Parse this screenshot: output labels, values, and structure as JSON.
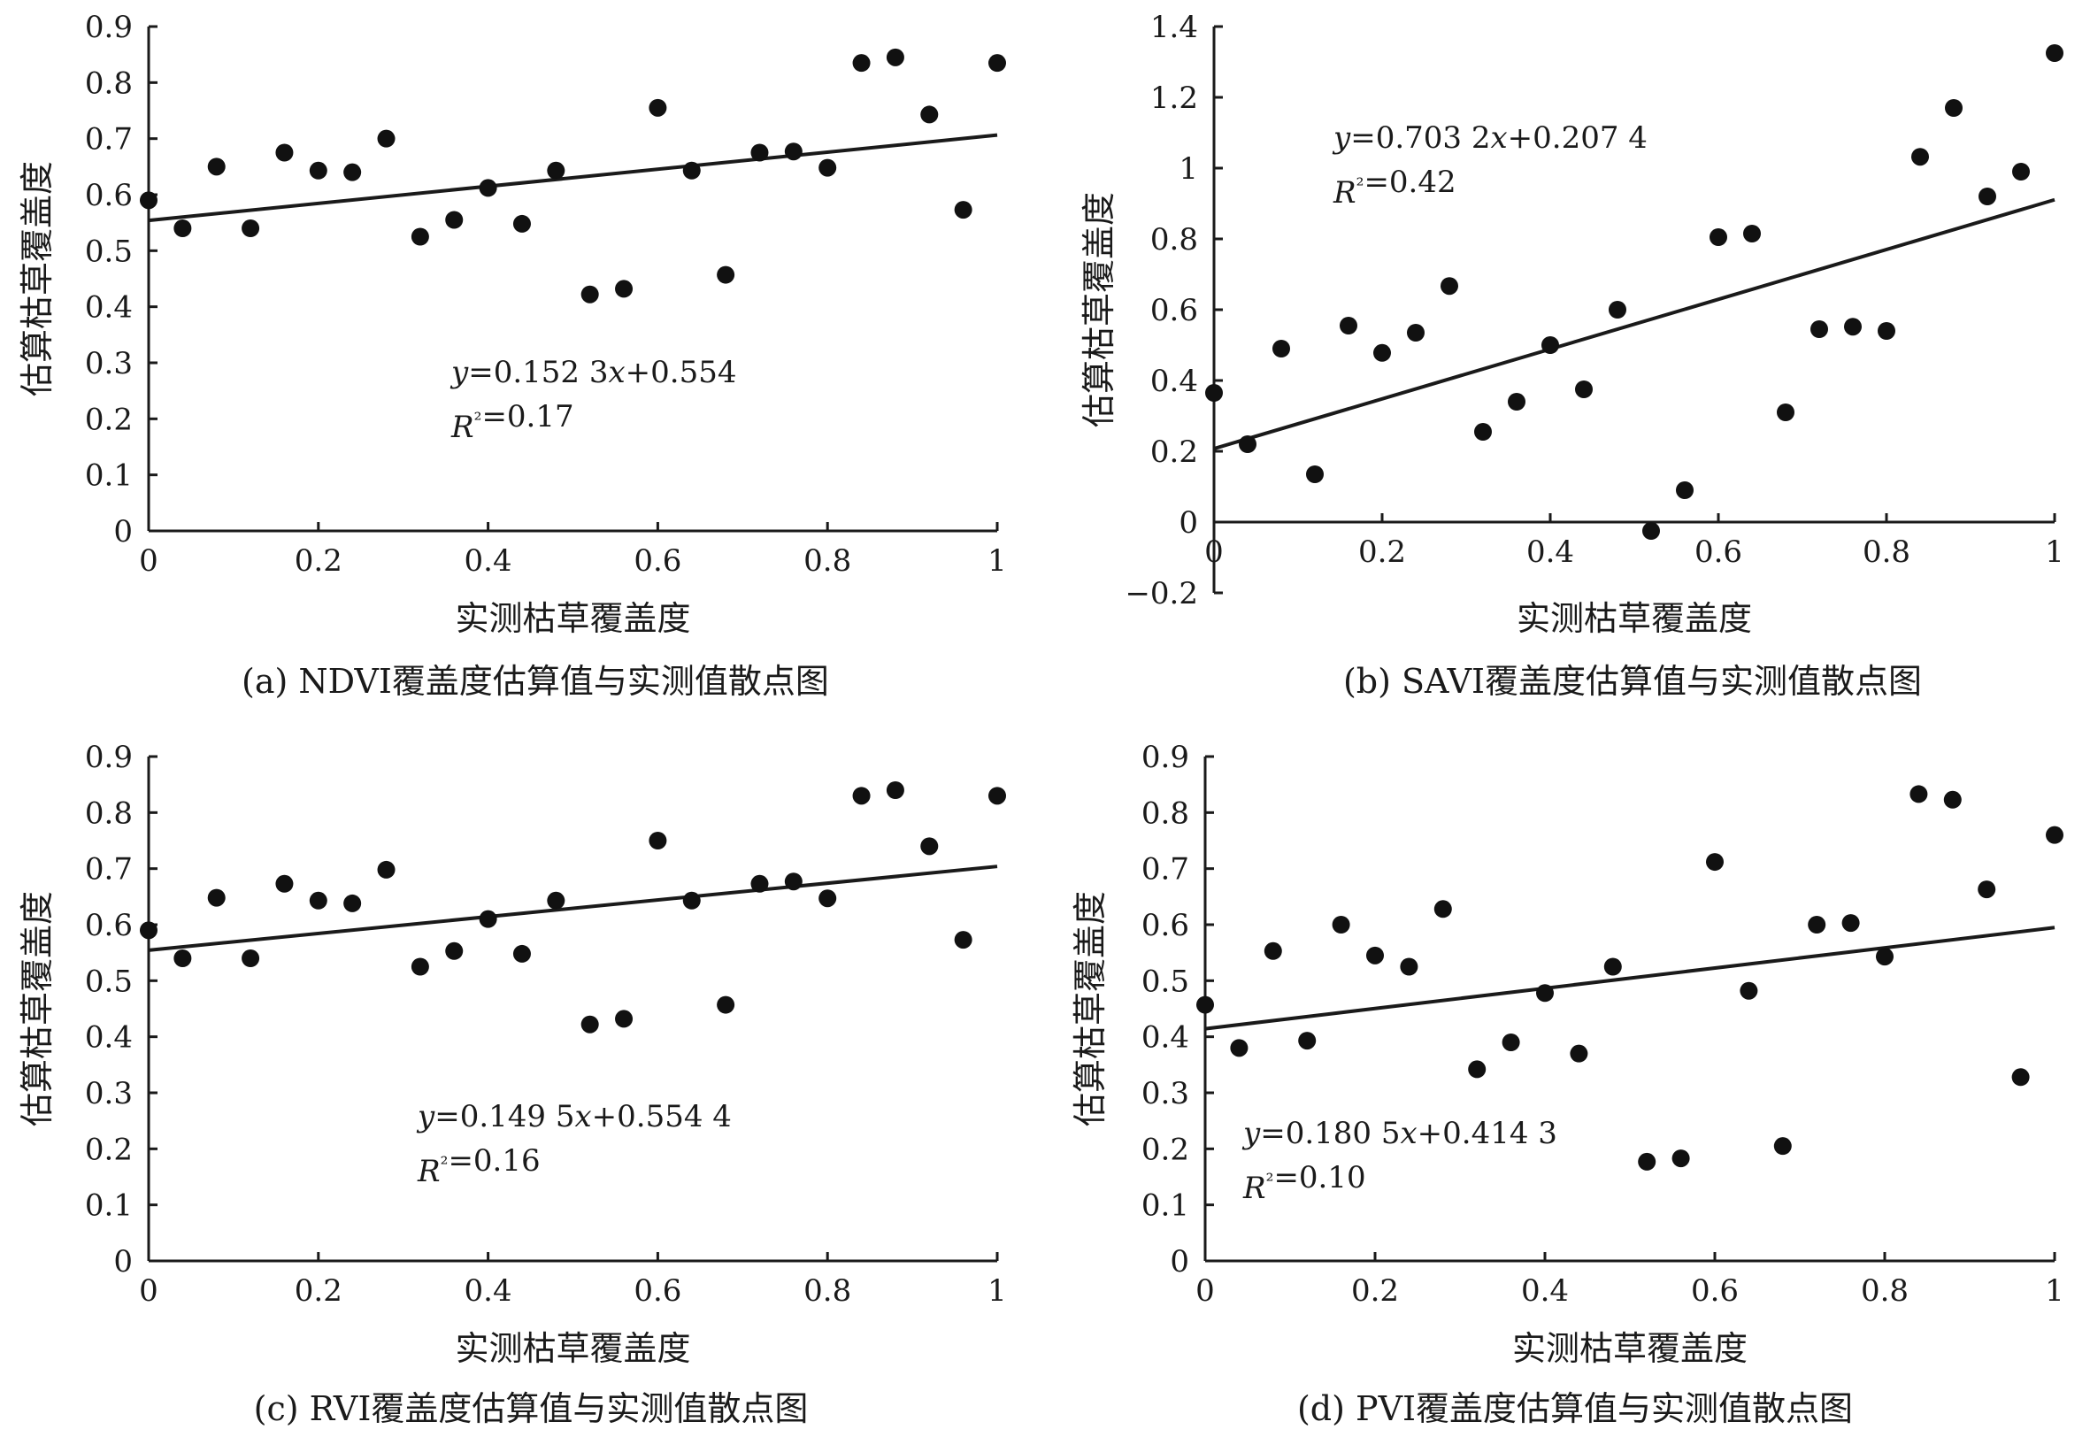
{
  "chart_data": [
    {
      "id": "a",
      "type": "scatter",
      "caption": "(a) NDVI覆盖度估算值与实测值散点图",
      "xlabel": "实测枯草覆盖度",
      "ylabel": "估算枯草覆盖度",
      "xlim": [
        0,
        1
      ],
      "ylim": [
        0,
        0.9
      ],
      "xticks": [
        0,
        0.2,
        0.4,
        0.6,
        0.8,
        1
      ],
      "xtick_labels": [
        "0",
        "0.2",
        "0.4",
        "0.6",
        "0.8",
        "1"
      ],
      "yticks": [
        0,
        0.1,
        0.2,
        0.3,
        0.4,
        0.5,
        0.6,
        0.7,
        0.8,
        0.9
      ],
      "ytick_labels": [
        "0",
        "0.1",
        "0.2",
        "0.3",
        "0.4",
        "0.5",
        "0.6",
        "0.7",
        "0.8",
        "0.9"
      ],
      "equation": "y=0.152 3x+0.554",
      "r2": "R²=0.17",
      "trendline": {
        "slope": 0.1523,
        "intercept": 0.554
      },
      "points": [
        {
          "x": 0,
          "y": 0.59
        },
        {
          "x": 0.04,
          "y": 0.54
        },
        {
          "x": 0.08,
          "y": 0.65
        },
        {
          "x": 0.12,
          "y": 0.54
        },
        {
          "x": 0.16,
          "y": 0.675
        },
        {
          "x": 0.2,
          "y": 0.643
        },
        {
          "x": 0.24,
          "y": 0.64
        },
        {
          "x": 0.28,
          "y": 0.7
        },
        {
          "x": 0.32,
          "y": 0.525
        },
        {
          "x": 0.36,
          "y": 0.555
        },
        {
          "x": 0.4,
          "y": 0.612
        },
        {
          "x": 0.44,
          "y": 0.548
        },
        {
          "x": 0.48,
          "y": 0.643
        },
        {
          "x": 0.52,
          "y": 0.422
        },
        {
          "x": 0.56,
          "y": 0.432
        },
        {
          "x": 0.6,
          "y": 0.755
        },
        {
          "x": 0.64,
          "y": 0.643
        },
        {
          "x": 0.68,
          "y": 0.457
        },
        {
          "x": 0.72,
          "y": 0.675
        },
        {
          "x": 0.76,
          "y": 0.677
        },
        {
          "x": 0.8,
          "y": 0.648
        },
        {
          "x": 0.84,
          "y": 0.835
        },
        {
          "x": 0.88,
          "y": 0.845
        },
        {
          "x": 0.92,
          "y": 0.743
        },
        {
          "x": 0.96,
          "y": 0.573
        },
        {
          "x": 1,
          "y": 0.835
        }
      ]
    },
    {
      "id": "b",
      "type": "scatter",
      "caption": "(b) SAVI覆盖度估算值与实测值散点图",
      "xlabel": "实测枯草覆盖度",
      "ylabel": "估算枯草覆盖度",
      "xlim": [
        0,
        1
      ],
      "ylim": [
        -0.2,
        1.4
      ],
      "xticks": [
        0,
        0.2,
        0.4,
        0.6,
        0.8,
        1
      ],
      "xtick_labels": [
        "0",
        "0.2",
        "0.4",
        "0.6",
        "0.8",
        "1"
      ],
      "yticks": [
        -0.2,
        0,
        0.2,
        0.4,
        0.6,
        0.8,
        1,
        1.2,
        1.4
      ],
      "ytick_labels": [
        "−0.2",
        "0",
        "0.2",
        "0.4",
        "0.6",
        "0.8",
        "1",
        "1.2",
        "1.4"
      ],
      "equation": "y=0.703 2x+0.207 4",
      "r2": "R²=0.42",
      "trendline": {
        "slope": 0.7032,
        "intercept": 0.2074
      },
      "points": [
        {
          "x": 0,
          "y": 0.365
        },
        {
          "x": 0.04,
          "y": 0.22
        },
        {
          "x": 0.08,
          "y": 0.49
        },
        {
          "x": 0.12,
          "y": 0.135
        },
        {
          "x": 0.16,
          "y": 0.555
        },
        {
          "x": 0.2,
          "y": 0.478
        },
        {
          "x": 0.24,
          "y": 0.535
        },
        {
          "x": 0.28,
          "y": 0.667
        },
        {
          "x": 0.32,
          "y": 0.255
        },
        {
          "x": 0.36,
          "y": 0.34
        },
        {
          "x": 0.4,
          "y": 0.5
        },
        {
          "x": 0.44,
          "y": 0.375
        },
        {
          "x": 0.48,
          "y": 0.6
        },
        {
          "x": 0.52,
          "y": -0.025
        },
        {
          "x": 0.56,
          "y": 0.09
        },
        {
          "x": 0.6,
          "y": 0.805
        },
        {
          "x": 0.64,
          "y": 0.815
        },
        {
          "x": 0.68,
          "y": 0.31
        },
        {
          "x": 0.72,
          "y": 0.545
        },
        {
          "x": 0.76,
          "y": 0.552
        },
        {
          "x": 0.8,
          "y": 0.54
        },
        {
          "x": 0.84,
          "y": 1.032
        },
        {
          "x": 0.88,
          "y": 1.17
        },
        {
          "x": 0.92,
          "y": 0.92
        },
        {
          "x": 0.96,
          "y": 0.99
        },
        {
          "x": 1,
          "y": 1.325
        }
      ]
    },
    {
      "id": "c",
      "type": "scatter",
      "caption": "(c) RVI覆盖度估算值与实测值散点图",
      "xlabel": "实测枯草覆盖度",
      "ylabel": "估算枯草覆盖度",
      "xlim": [
        0,
        1
      ],
      "ylim": [
        0,
        0.9
      ],
      "xticks": [
        0,
        0.2,
        0.4,
        0.6,
        0.8,
        1
      ],
      "xtick_labels": [
        "0",
        "0.2",
        "0.4",
        "0.6",
        "0.8",
        "1"
      ],
      "yticks": [
        0,
        0.1,
        0.2,
        0.3,
        0.4,
        0.5,
        0.6,
        0.7,
        0.8,
        0.9
      ],
      "ytick_labels": [
        "0",
        "0.1",
        "0.2",
        "0.3",
        "0.4",
        "0.5",
        "0.6",
        "0.7",
        "0.8",
        "0.9"
      ],
      "equation": "y=0.149 5x+0.554 4",
      "r2": "R²=0.16",
      "trendline": {
        "slope": 0.1495,
        "intercept": 0.5544
      },
      "points": [
        {
          "x": 0,
          "y": 0.59
        },
        {
          "x": 0.04,
          "y": 0.54
        },
        {
          "x": 0.08,
          "y": 0.648
        },
        {
          "x": 0.12,
          "y": 0.54
        },
        {
          "x": 0.16,
          "y": 0.673
        },
        {
          "x": 0.2,
          "y": 0.643
        },
        {
          "x": 0.24,
          "y": 0.638
        },
        {
          "x": 0.28,
          "y": 0.698
        },
        {
          "x": 0.32,
          "y": 0.525
        },
        {
          "x": 0.36,
          "y": 0.553
        },
        {
          "x": 0.4,
          "y": 0.61
        },
        {
          "x": 0.44,
          "y": 0.548
        },
        {
          "x": 0.48,
          "y": 0.643
        },
        {
          "x": 0.52,
          "y": 0.422
        },
        {
          "x": 0.56,
          "y": 0.432
        },
        {
          "x": 0.6,
          "y": 0.75
        },
        {
          "x": 0.64,
          "y": 0.643
        },
        {
          "x": 0.68,
          "y": 0.457
        },
        {
          "x": 0.72,
          "y": 0.673
        },
        {
          "x": 0.76,
          "y": 0.677
        },
        {
          "x": 0.8,
          "y": 0.647
        },
        {
          "x": 0.84,
          "y": 0.83
        },
        {
          "x": 0.88,
          "y": 0.84
        },
        {
          "x": 0.92,
          "y": 0.74
        },
        {
          "x": 0.96,
          "y": 0.573
        },
        {
          "x": 1,
          "y": 0.83
        }
      ]
    },
    {
      "id": "d",
      "type": "scatter",
      "caption": "(d) PVI覆盖度估算值与实测值散点图",
      "xlabel": "实测枯草覆盖度",
      "ylabel": "估算枯草覆盖度",
      "xlim": [
        0,
        1
      ],
      "ylim": [
        0,
        0.9
      ],
      "xticks": [
        0,
        0.2,
        0.4,
        0.6,
        0.8,
        1
      ],
      "xtick_labels": [
        "0",
        "0.2",
        "0.4",
        "0.6",
        "0.8",
        "1"
      ],
      "yticks": [
        0,
        0.1,
        0.2,
        0.3,
        0.4,
        0.5,
        0.6,
        0.7,
        0.8,
        0.9
      ],
      "ytick_labels": [
        "0",
        "0.1",
        "0.2",
        "0.3",
        "0.4",
        "0.5",
        "0.6",
        "0.7",
        "0.8",
        "0.9"
      ],
      "equation": "y=0.180 5x+0.414 3",
      "r2": "R²=0.10",
      "trendline": {
        "slope": 0.1805,
        "intercept": 0.4143
      },
      "points": [
        {
          "x": 0,
          "y": 0.457
        },
        {
          "x": 0.04,
          "y": 0.38
        },
        {
          "x": 0.08,
          "y": 0.553
        },
        {
          "x": 0.12,
          "y": 0.393
        },
        {
          "x": 0.16,
          "y": 0.6
        },
        {
          "x": 0.2,
          "y": 0.545
        },
        {
          "x": 0.24,
          "y": 0.525
        },
        {
          "x": 0.28,
          "y": 0.628
        },
        {
          "x": 0.32,
          "y": 0.342
        },
        {
          "x": 0.36,
          "y": 0.39
        },
        {
          "x": 0.4,
          "y": 0.478
        },
        {
          "x": 0.44,
          "y": 0.37
        },
        {
          "x": 0.48,
          "y": 0.525
        },
        {
          "x": 0.52,
          "y": 0.177
        },
        {
          "x": 0.56,
          "y": 0.183
        },
        {
          "x": 0.6,
          "y": 0.712
        },
        {
          "x": 0.64,
          "y": 0.482
        },
        {
          "x": 0.68,
          "y": 0.205
        },
        {
          "x": 0.72,
          "y": 0.6
        },
        {
          "x": 0.76,
          "y": 0.603
        },
        {
          "x": 0.8,
          "y": 0.543
        },
        {
          "x": 0.84,
          "y": 0.833
        },
        {
          "x": 0.88,
          "y": 0.823
        },
        {
          "x": 0.92,
          "y": 0.663
        },
        {
          "x": 0.96,
          "y": 0.328
        },
        {
          "x": 1,
          "y": 0.76
        }
      ]
    }
  ]
}
